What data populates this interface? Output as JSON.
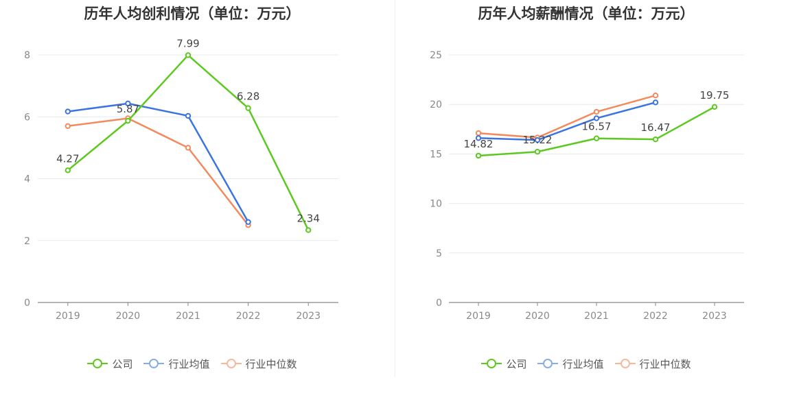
{
  "chart_data": [
    {
      "type": "line",
      "title": "历年人均创利情况（单位：万元）",
      "categories": [
        "2019",
        "2020",
        "2021",
        "2022",
        "2023"
      ],
      "ylim": [
        0,
        8
      ],
      "yticks": [
        0,
        2,
        4,
        6,
        8
      ],
      "grid": true,
      "legend_position": "bottom",
      "series": [
        {
          "name": "公司",
          "color": "#5cc91f",
          "values": [
            4.27,
            5.87,
            7.99,
            6.28,
            2.34
          ],
          "labels": [
            "4.27",
            "5.87",
            "7.99",
            "6.28",
            "2.34"
          ]
        },
        {
          "name": "行业均值",
          "color": "#3b74e0",
          "values": [
            6.17,
            6.43,
            6.03,
            2.6,
            null
          ]
        },
        {
          "name": "行业中位数",
          "color": "#f28a5c",
          "values": [
            5.7,
            5.95,
            5.0,
            2.5,
            null
          ]
        }
      ]
    },
    {
      "type": "line",
      "title": "历年人均薪酬情况（单位：万元）",
      "categories": [
        "2019",
        "2020",
        "2021",
        "2022",
        "2023"
      ],
      "ylim": [
        0,
        25
      ],
      "yticks": [
        0,
        5,
        10,
        15,
        20,
        25
      ],
      "grid": true,
      "legend_position": "bottom",
      "series": [
        {
          "name": "公司",
          "color": "#5cc91f",
          "values": [
            14.82,
            15.22,
            16.57,
            16.47,
            19.75
          ],
          "labels": [
            "14.82",
            "15.22",
            "16.57",
            "16.47",
            "19.75"
          ]
        },
        {
          "name": "行业均值",
          "color": "#3b74e0",
          "values": [
            16.6,
            16.4,
            18.6,
            20.2,
            null
          ]
        },
        {
          "name": "行业中位数",
          "color": "#f28a5c",
          "values": [
            17.1,
            16.65,
            19.25,
            20.9,
            null
          ]
        }
      ]
    }
  ]
}
